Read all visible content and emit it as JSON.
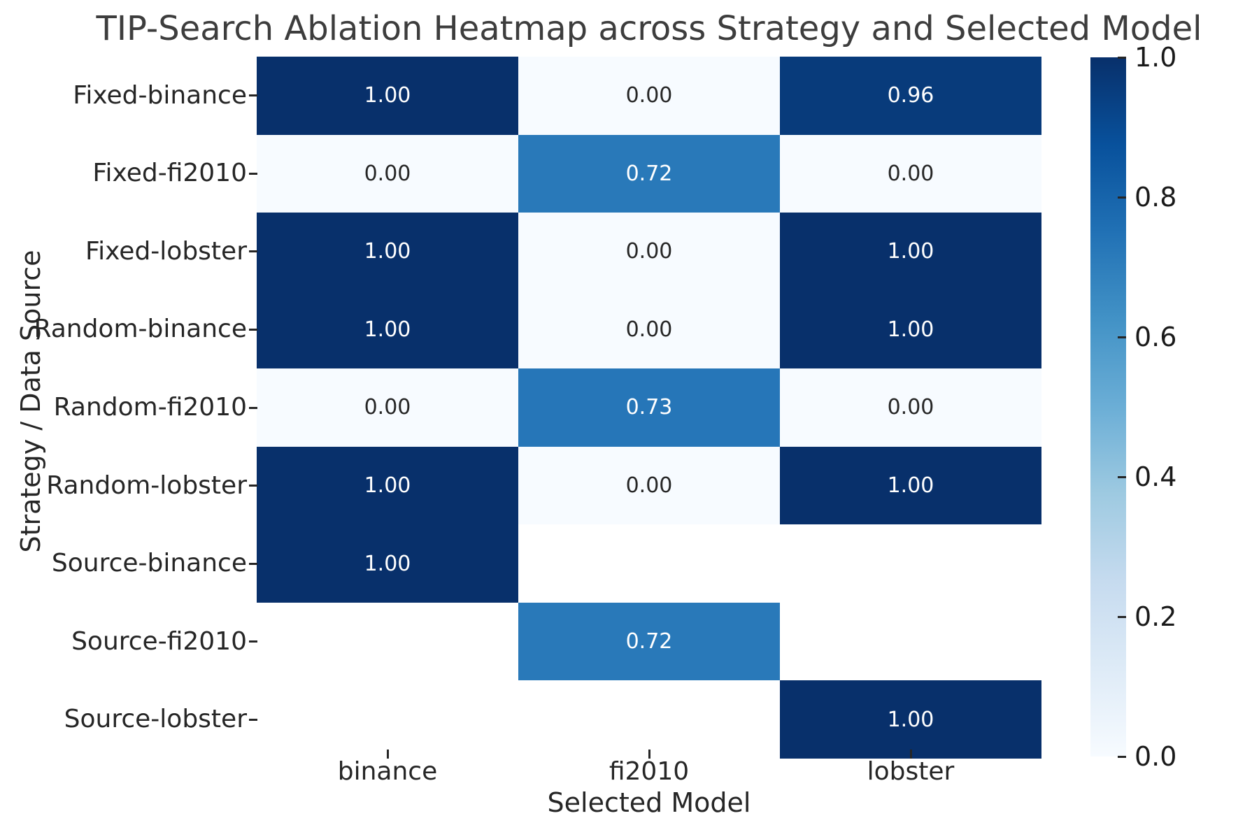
{
  "title": "TIP-Search Ablation Heatmap across Strategy and Selected Model",
  "chart_data": {
    "type": "heatmap",
    "title": "TIP-Search Ablation Heatmap across Strategy and Selected Model",
    "xlabel": "Selected Model",
    "ylabel": "Strategy / Data Source",
    "columns": [
      "binance",
      "fi2010",
      "lobster"
    ],
    "rows": [
      "Fixed-binance",
      "Fixed-fi2010",
      "Fixed-lobster",
      "Random-binance",
      "Random-fi2010",
      "Random-lobster",
      "Source-binance",
      "Source-fi2010",
      "Source-lobster"
    ],
    "values": [
      [
        1.0,
        0.0,
        0.96
      ],
      [
        0.0,
        0.72,
        0.0
      ],
      [
        1.0,
        0.0,
        1.0
      ],
      [
        1.0,
        0.0,
        1.0
      ],
      [
        0.0,
        0.73,
        0.0
      ],
      [
        1.0,
        0.0,
        1.0
      ],
      [
        1.0,
        null,
        null
      ],
      [
        null,
        0.72,
        null
      ],
      [
        null,
        null,
        1.0
      ]
    ],
    "value_decimals": 2,
    "vmin": 0.0,
    "vmax": 1.0,
    "colormap": "Blues",
    "colormap_stops": [
      "#f7fbff",
      "#deebf7",
      "#c6dbef",
      "#9ecae1",
      "#6baed6",
      "#4292c6",
      "#2171b5",
      "#08519c",
      "#08306b"
    ],
    "nan_color": "#ffffff",
    "annot_color_on_dark": "#ffffff",
    "annot_color_on_light": "#262626",
    "grid": false,
    "legend_position": "right-colorbar",
    "colorbar_ticks": [
      "1.0",
      "0.8",
      "0.6",
      "0.4",
      "0.2",
      "0.0"
    ],
    "colorbar_tick_values": [
      1.0,
      0.8,
      0.6,
      0.4,
      0.2,
      0.0
    ]
  }
}
